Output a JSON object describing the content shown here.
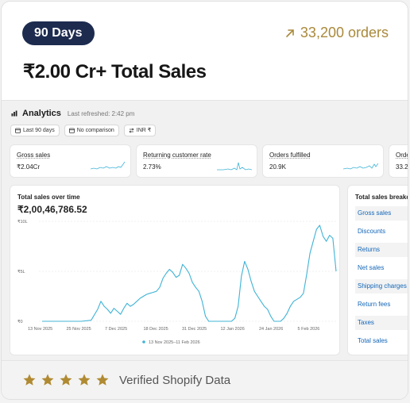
{
  "header": {
    "badge": "90 Days",
    "orders": "33,200 orders",
    "headline": "₹2.00 Cr+ Total Sales",
    "accent_color": "#a9893b",
    "badge_color": "#1d2b4f",
    "orders_icon": "arrow-up-right-icon"
  },
  "analytics": {
    "title": "Analytics",
    "last_refreshed": "Last refreshed: 2:42 pm",
    "chips": [
      {
        "icon": "calendar-icon",
        "label": "Last 90 days"
      },
      {
        "icon": "calendar-icon",
        "label": "No comparison"
      },
      {
        "icon": "currency-icon",
        "label": "INR ₹"
      }
    ],
    "stats": [
      {
        "label": "Gross sales",
        "value": "₹2.04Cr"
      },
      {
        "label": "Returning customer rate",
        "value": "2.73%"
      },
      {
        "label": "Orders fulfilled",
        "value": "20.9K"
      },
      {
        "label": "Orde",
        "value": "33.2"
      }
    ],
    "chart": {
      "title": "Total sales over time",
      "value": "₹2,00,46,786.52"
    },
    "breakdown": {
      "title": "Total sales breakdown",
      "items": [
        "Gross sales",
        "Discounts",
        "Returns",
        "Net sales",
        "Shipping charges",
        "Return fees",
        "Taxes",
        "Total sales"
      ]
    }
  },
  "chart_data": {
    "type": "line",
    "title": "Total sales over time",
    "x_ticks": [
      "13 Nov 2025",
      "25 Nov 2025",
      "7 Dec 2025",
      "18 Dec 2025",
      "31 Dec 2025",
      "12 Jan 2026",
      "24 Jan 2026",
      "5 Feb 2026"
    ],
    "y_ticks": [
      "₹0",
      "₹5L",
      "₹10L"
    ],
    "ylim": [
      0,
      10
    ],
    "series": [
      {
        "name": "13 Nov 2025–11 Feb 2026",
        "color": "#3fb3d6",
        "x": [
          "2025-11-13",
          "2025-11-17",
          "2025-11-21",
          "2025-11-25",
          "2025-11-28",
          "2025-11-30",
          "2025-12-01",
          "2025-12-02",
          "2025-12-03",
          "2025-12-04",
          "2025-12-05",
          "2025-12-06",
          "2025-12-07",
          "2025-12-08",
          "2025-12-09",
          "2025-12-10",
          "2025-12-11",
          "2025-12-12",
          "2025-12-13",
          "2025-12-14",
          "2025-12-15",
          "2025-12-16",
          "2025-12-17",
          "2025-12-18",
          "2025-12-19",
          "2025-12-20",
          "2025-12-21",
          "2025-12-22",
          "2025-12-23",
          "2025-12-24",
          "2025-12-25",
          "2025-12-26",
          "2025-12-27",
          "2025-12-28",
          "2025-12-29",
          "2025-12-30",
          "2025-12-31",
          "2026-01-01",
          "2026-01-02",
          "2026-01-03",
          "2026-01-04",
          "2026-01-05",
          "2026-01-06",
          "2026-01-07",
          "2026-01-08",
          "2026-01-09",
          "2026-01-10",
          "2026-01-11",
          "2026-01-12",
          "2026-01-13",
          "2026-01-14",
          "2026-01-15",
          "2026-01-16",
          "2026-01-17",
          "2026-01-18",
          "2026-01-19",
          "2026-01-20",
          "2026-01-21",
          "2026-01-22",
          "2026-01-23",
          "2026-01-24",
          "2026-01-25",
          "2026-01-26",
          "2026-01-27",
          "2026-01-28",
          "2026-01-29",
          "2026-01-30",
          "2026-01-31",
          "2026-02-01",
          "2026-02-02",
          "2026-02-03",
          "2026-02-04",
          "2026-02-05",
          "2026-02-06",
          "2026-02-07",
          "2026-02-08",
          "2026-02-09",
          "2026-02-10",
          "2026-02-11"
        ],
        "values": [
          0,
          0,
          0,
          0,
          0.1,
          1.2,
          2.0,
          1.5,
          1.2,
          0.8,
          1.3,
          1.0,
          0.7,
          1.3,
          1.8,
          1.5,
          1.7,
          2.0,
          2.3,
          2.5,
          2.7,
          2.8,
          2.9,
          3.0,
          3.4,
          4.3,
          4.8,
          5.2,
          4.9,
          4.4,
          4.6,
          5.7,
          5.3,
          4.8,
          3.9,
          3.4,
          3.0,
          2.0,
          0.5,
          0,
          0,
          0,
          0,
          0,
          0,
          0,
          0,
          0.3,
          1.5,
          4.5,
          6.0,
          5.2,
          4.0,
          3.0,
          2.5,
          2.0,
          1.5,
          1.2,
          0.5,
          0,
          0,
          0,
          0.3,
          0.8,
          1.5,
          2.0,
          2.2,
          2.4,
          2.8,
          4.7,
          6.8,
          8.0,
          9.2,
          9.6,
          8.5,
          8.0,
          8.6,
          8.3,
          5.0
        ]
      }
    ]
  },
  "footer": {
    "rating": 5,
    "star_color": "#b08a32",
    "label": "Verified Shopify Data"
  }
}
